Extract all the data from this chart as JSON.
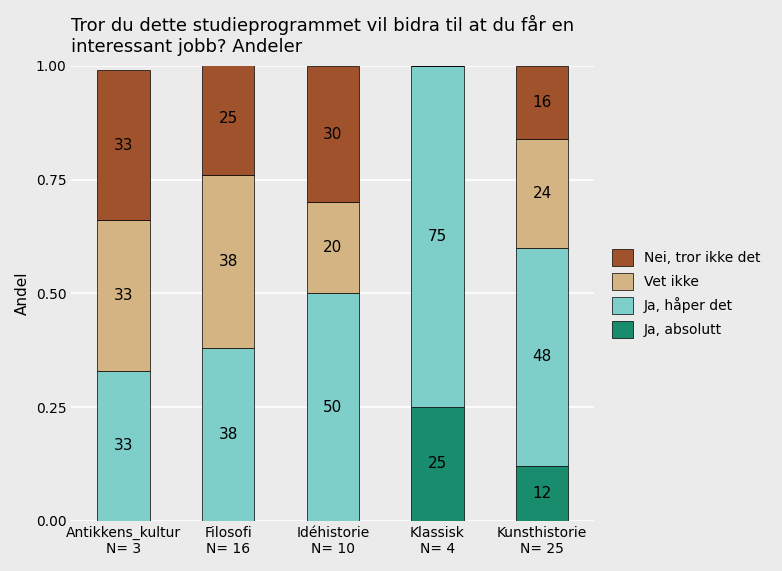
{
  "title": "Tror du dette studieprogrammet vil bidra til at du får en\ninteressant jobb? Andeler",
  "ylabel": "Andel",
  "categories": [
    "Antikkens_kultur\nN= 3",
    "Filosofi\nN= 16",
    "Idéhistorie\nN= 10",
    "Klassisk\nN= 4",
    "Kunsthistorie\nN= 25"
  ],
  "legend_labels": [
    "Nei, tror ikke det",
    "Vet ikke",
    "Ja, håper det",
    "Ja, absolutt"
  ],
  "colors": {
    "Nei, tror ikke det": "#A0522D",
    "Vet ikke": "#D4B483",
    "Ja, håper det": "#7ECECA",
    "Ja, absolutt": "#1A8C6E"
  },
  "data": {
    "Ja, absolutt": [
      0.0,
      0.0,
      0.0,
      0.25,
      0.12
    ],
    "Ja, håper det": [
      0.33,
      0.38,
      0.5,
      0.75,
      0.48
    ],
    "Vet ikke": [
      0.33,
      0.38,
      0.2,
      0.0,
      0.24
    ],
    "Nei, tror ikke det": [
      0.33,
      0.25,
      0.3,
      0.0,
      0.16
    ]
  },
  "labels": {
    "Ja, absolutt": [
      "",
      "",
      "",
      "25",
      "12"
    ],
    "Ja, håper det": [
      "33",
      "38",
      "50",
      "75",
      "48"
    ],
    "Vet ikke": [
      "33",
      "38",
      "20",
      "",
      "24"
    ],
    "Nei, tror ikke det": [
      "33",
      "25",
      "30",
      "",
      "16"
    ]
  },
  "bar_width": 0.5,
  "background_color": "#EBEBEB",
  "plot_bg_color": "#EBEBEB",
  "grid_color": "#FFFFFF",
  "title_fontsize": 13,
  "axis_label_fontsize": 11,
  "tick_fontsize": 10,
  "legend_fontsize": 10
}
